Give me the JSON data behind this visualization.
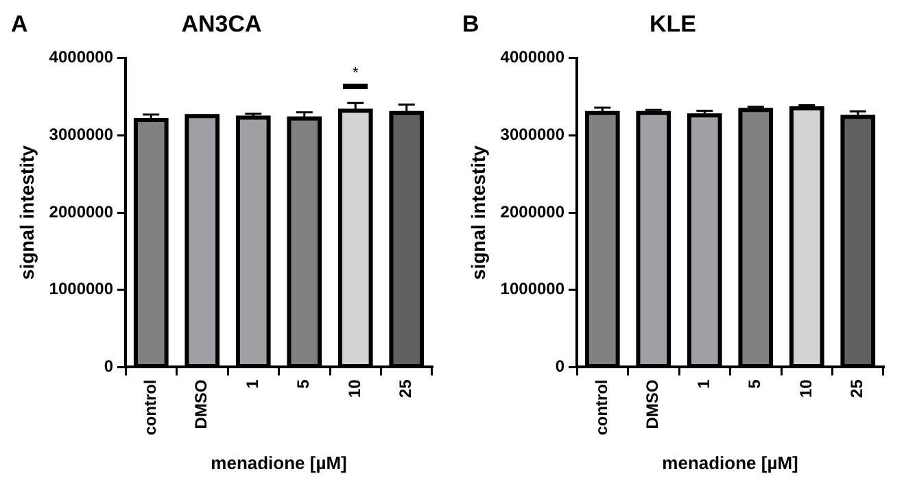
{
  "chart_data": [
    {
      "type": "bar",
      "title": "AN3CA",
      "xlabel": "menadione [µM]",
      "ylabel": "signal intestity",
      "categories": [
        "control",
        "DMSO",
        "1",
        "5",
        "10",
        "25"
      ],
      "values": [
        3200000,
        3250000,
        3230000,
        3220000,
        3320000,
        3290000
      ],
      "errors": [
        70000,
        10000,
        50000,
        80000,
        100000,
        110000
      ],
      "colors": [
        "#808080",
        "#a0a0a4",
        "#a0a0a4",
        "#808080",
        "#d3d3d3",
        "#606060"
      ],
      "ylim": [
        0,
        4000000
      ],
      "yticks": [
        0,
        1000000,
        2000000,
        3000000,
        4000000
      ],
      "grid": false,
      "legend": false,
      "annotations": [
        "A",
        "*"
      ]
    },
    {
      "type": "bar",
      "title": "KLE",
      "xlabel": "menadione [µM]",
      "ylabel": "signal intestity",
      "categories": [
        "control",
        "DMSO",
        "1",
        "5",
        "10",
        "25"
      ],
      "values": [
        3290000,
        3290000,
        3260000,
        3330000,
        3350000,
        3240000
      ],
      "errors": [
        70000,
        40000,
        60000,
        40000,
        40000,
        70000
      ],
      "colors": [
        "#808080",
        "#a0a0a4",
        "#a0a0a4",
        "#808080",
        "#d3d3d3",
        "#606060"
      ],
      "ylim": [
        0,
        4000000
      ],
      "yticks": [
        0,
        1000000,
        2000000,
        3000000,
        4000000
      ],
      "grid": false,
      "legend": false,
      "annotations": [
        "B"
      ]
    }
  ]
}
